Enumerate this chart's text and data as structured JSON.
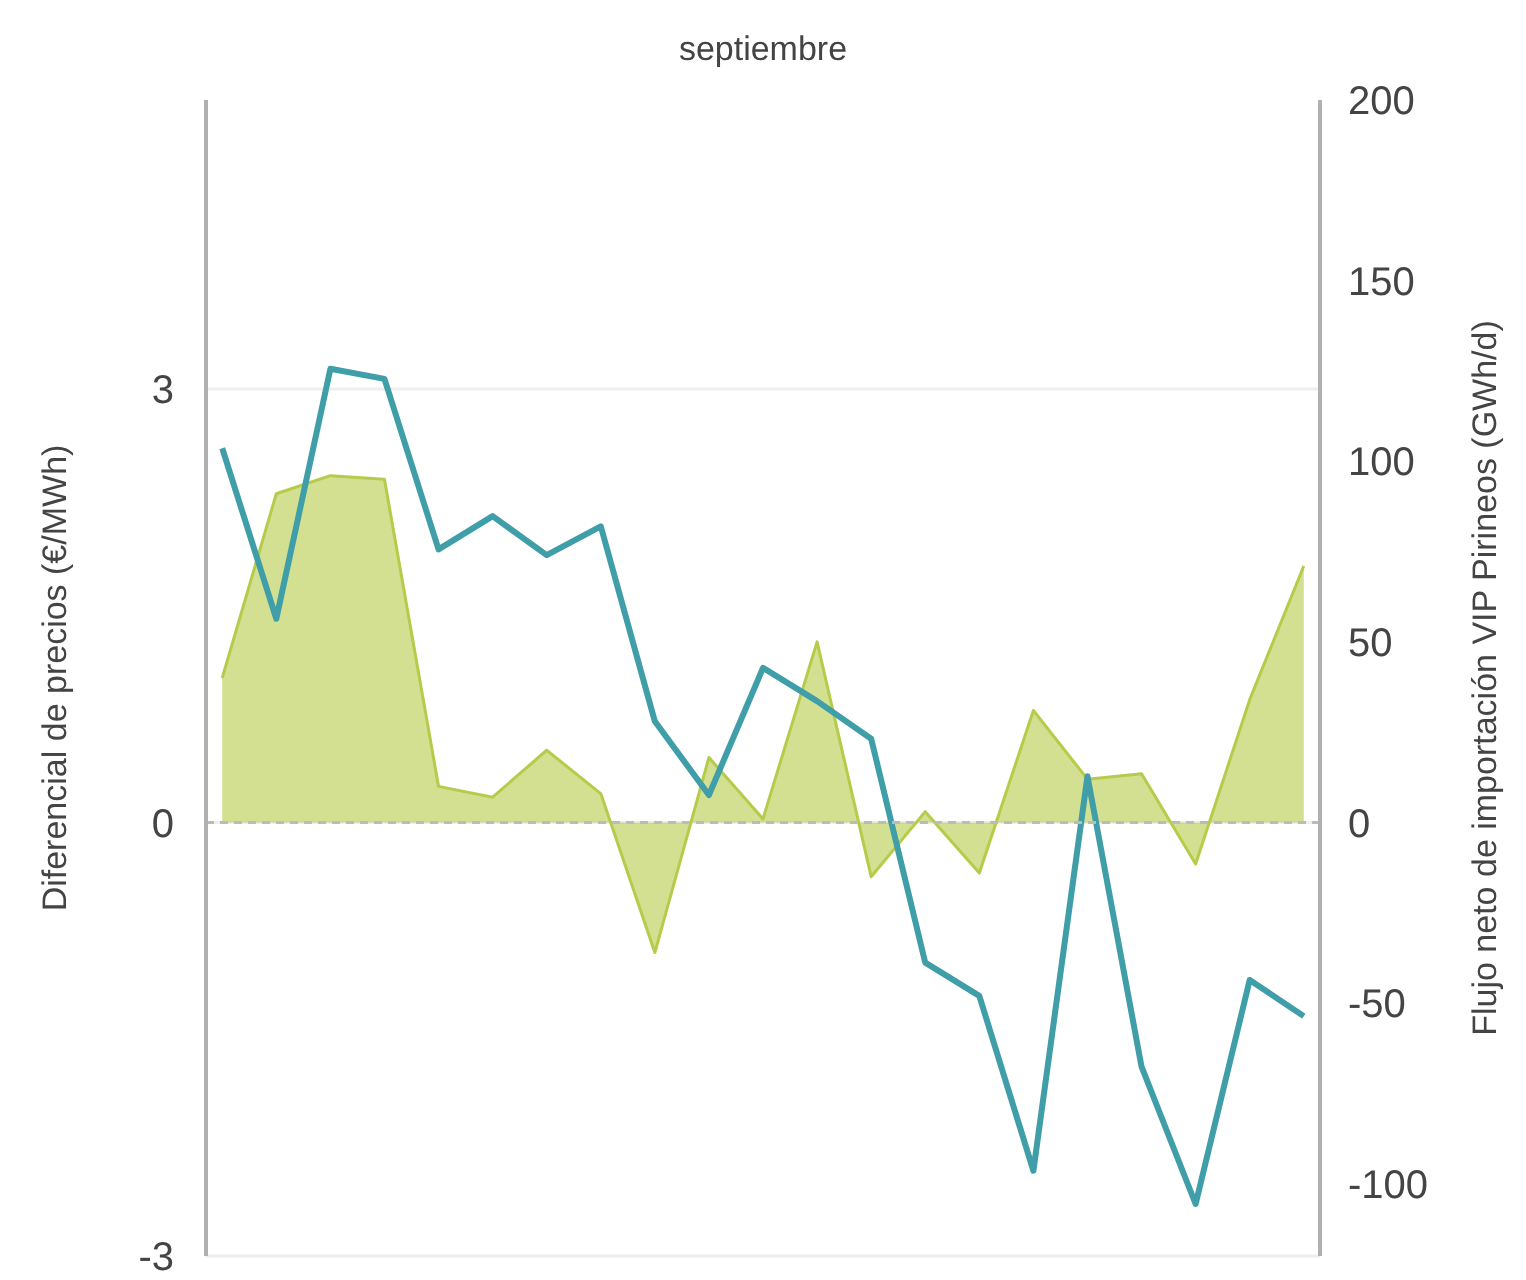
{
  "chart_data": {
    "type": "line",
    "title": "septiembre",
    "ylabel": "Diferencial de precios (€/MWh)",
    "y2label": "Flujo neto de importación VIP Pirineos (GWh/d)",
    "categories": [
      null,
      null,
      null,
      null,
      null,
      null,
      null,
      null,
      null,
      null,
      null,
      null,
      null,
      null,
      null,
      null,
      null,
      null,
      null,
      null,
      null
    ],
    "series": [
      {
        "type": "area",
        "axis": "y2",
        "color": "#b5cc4a",
        "values": [
          40,
          91,
          96,
          95,
          10,
          7,
          20,
          8,
          -36,
          18,
          1,
          50,
          -15,
          3,
          -14,
          31,
          12,
          13.5,
          -11.5,
          34,
          71
        ]
      },
      {
        "axis": "y",
        "color": "#3f9ea8",
        "values": [
          2.59,
          1.41,
          3.14,
          3.07,
          1.89,
          2.12,
          1.85,
          2.05,
          0.7,
          0.19,
          1.07,
          0.84,
          0.58,
          -0.97,
          -1.2,
          -2.41,
          0.32,
          -1.69,
          -2.64,
          -1.09,
          -1.34
        ]
      }
    ],
    "ylim": [
      -3,
      5
    ],
    "yticks": [
      -3,
      0,
      3
    ],
    "y2lim": [
      -120,
      200
    ],
    "y2ticks": [
      -100,
      -50,
      0,
      50,
      100,
      150,
      200
    ],
    "grid": "y",
    "ref_lines": [
      {
        "axis": "y",
        "value": 0,
        "color": "#bbbbbb",
        "line_style": "dashed"
      }
    ]
  }
}
